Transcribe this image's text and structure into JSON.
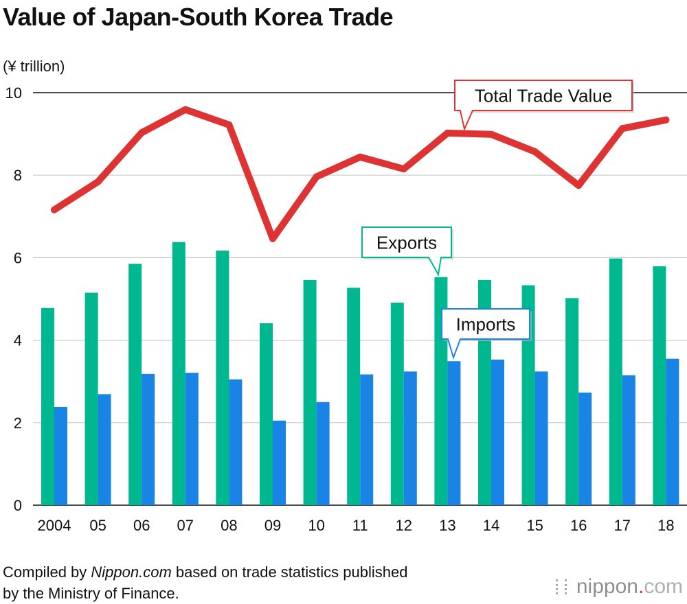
{
  "title": "Value of Japan-South Korea Trade",
  "unit_label": "(¥ trillion)",
  "source": {
    "prefix": "Compiled by ",
    "site": "Nippon.com",
    "line1_rest": " based on trade statistics published",
    "line2": "by the Ministry of Finance."
  },
  "logo": {
    "brand": "nippon",
    "dot": ".",
    "tld": "com"
  },
  "colors": {
    "exports": "#00b890",
    "imports": "#1a84e6",
    "total": "#dd3333",
    "total_callout_border": "#dd3333",
    "exports_callout_border": "#00b890",
    "imports_callout_border": "#1a84e6"
  },
  "chart_data": {
    "type": "bar",
    "title": "Value of Japan-South Korea Trade",
    "ylabel": "(¥ trillion)",
    "xlabel": "",
    "ylim": [
      0,
      10
    ],
    "yticks": [
      0,
      2,
      4,
      6,
      8,
      10
    ],
    "categories": [
      "2004",
      "05",
      "06",
      "07",
      "08",
      "09",
      "10",
      "11",
      "12",
      "13",
      "14",
      "15",
      "16",
      "17",
      "18"
    ],
    "series": [
      {
        "name": "Exports",
        "kind": "bar",
        "values": [
          4.78,
          5.15,
          5.85,
          6.38,
          6.17,
          4.41,
          5.46,
          5.27,
          4.91,
          5.53,
          5.46,
          5.33,
          5.02,
          5.98,
          5.79
        ]
      },
      {
        "name": "Imports",
        "kind": "bar",
        "values": [
          2.38,
          2.69,
          3.18,
          3.21,
          3.05,
          2.05,
          2.5,
          3.17,
          3.24,
          3.49,
          3.53,
          3.24,
          2.73,
          3.15,
          3.55
        ]
      },
      {
        "name": "Total Trade Value",
        "kind": "line",
        "values": [
          7.16,
          7.84,
          9.03,
          9.59,
          9.22,
          6.46,
          7.96,
          8.44,
          8.15,
          9.02,
          8.99,
          8.57,
          7.75,
          9.13,
          9.34
        ]
      }
    ],
    "annotations": {
      "total": "Total Trade Value",
      "exports": "Exports",
      "imports": "Imports"
    }
  }
}
